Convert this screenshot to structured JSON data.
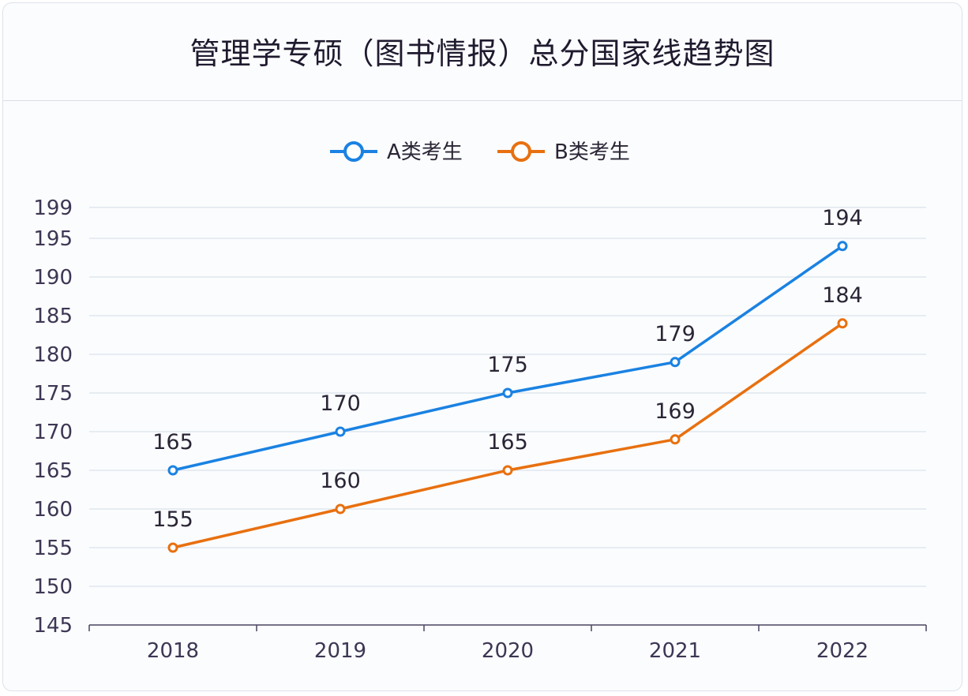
{
  "chart_data": {
    "type": "line",
    "title": "管理学专硕（图书情报）总分国家线趋势图",
    "xlabel": "",
    "ylabel": "",
    "categories": [
      "2018",
      "2019",
      "2020",
      "2021",
      "2022"
    ],
    "series": [
      {
        "name": "A类考生",
        "color": "#1a82e2",
        "values": [
          165,
          170,
          175,
          179,
          194
        ]
      },
      {
        "name": "B类考生",
        "color": "#e8700f",
        "values": [
          155,
          160,
          165,
          169,
          184
        ]
      }
    ],
    "ylim": [
      145,
      199
    ],
    "yticks": [
      145,
      150,
      155,
      160,
      165,
      170,
      175,
      180,
      185,
      190,
      195,
      199
    ],
    "grid": true,
    "legend_position": "top-center",
    "data_labels": true
  }
}
